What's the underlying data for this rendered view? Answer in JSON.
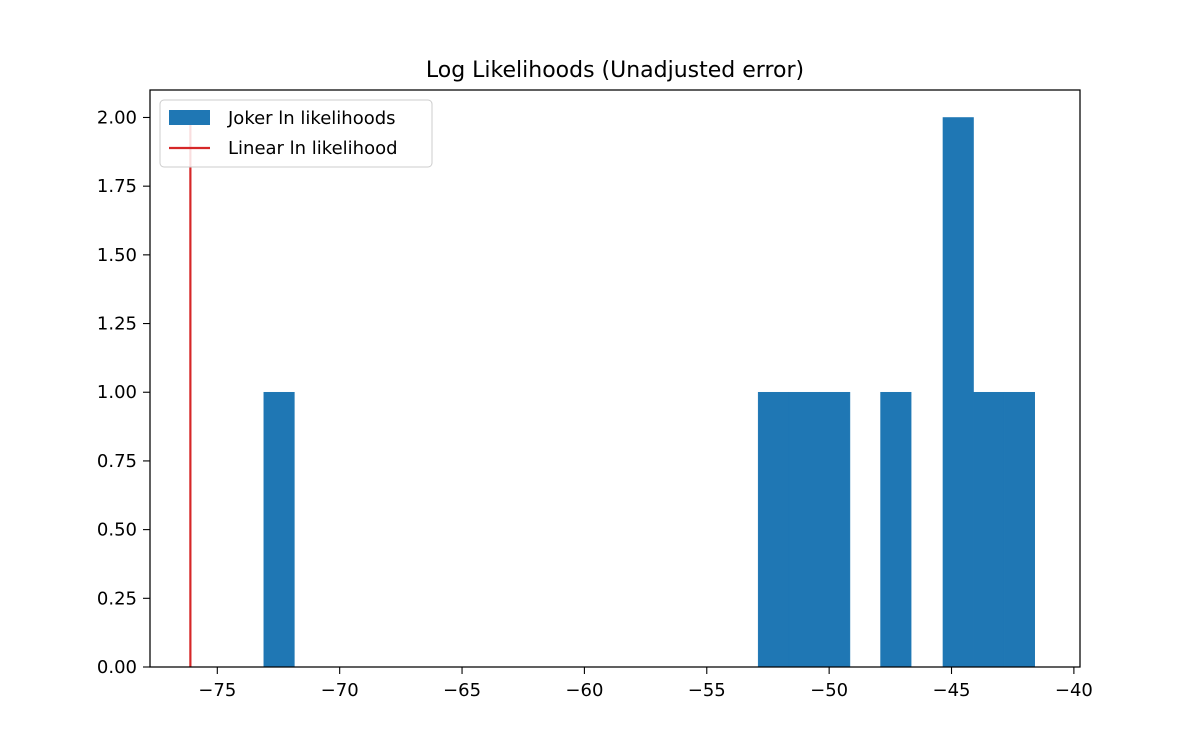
{
  "chart_data": {
    "type": "bar",
    "title": "Log Likelihoods (Unadjusted error)",
    "xlabel": "",
    "ylabel": "",
    "xlim": [
      -77.75,
      -39.75
    ],
    "ylim": [
      0,
      2.1
    ],
    "grid": false,
    "legend_position": "top-left",
    "x_ticks": [
      -75,
      -70,
      -65,
      -60,
      -55,
      -50,
      -45,
      -40
    ],
    "x_tick_labels": [
      "−75",
      "−70",
      "−65",
      "−60",
      "−55",
      "−50",
      "−45",
      "−40"
    ],
    "y_ticks": [
      0,
      0.25,
      0.5,
      0.75,
      1.0,
      1.25,
      1.5,
      1.75,
      2.0
    ],
    "y_tick_labels": [
      "0.00",
      "0.25",
      "0.50",
      "0.75",
      "1.00",
      "1.25",
      "1.50",
      "1.75",
      "2.00"
    ],
    "series": [
      {
        "name": "Joker ln likelihoods",
        "kind": "histogram",
        "color": "#1f77b4",
        "bins": [
          {
            "x0": -73.1,
            "x1": -71.85,
            "count": 1
          },
          {
            "x0": -52.9,
            "x1": -51.65,
            "count": 1
          },
          {
            "x0": -51.65,
            "x1": -50.4,
            "count": 1
          },
          {
            "x0": -50.4,
            "x1": -49.15,
            "count": 1
          },
          {
            "x0": -47.9,
            "x1": -46.65,
            "count": 1
          },
          {
            "x0": -45.35,
            "x1": -44.1,
            "count": 2
          },
          {
            "x0": -44.1,
            "x1": -42.85,
            "count": 1
          },
          {
            "x0": -42.85,
            "x1": -41.6,
            "count": 1
          }
        ]
      },
      {
        "name": "Linear ln likelihood",
        "kind": "vertical_line",
        "color": "#d62728",
        "x": -76.1,
        "ymin": 0,
        "ymax": 2.0
      }
    ]
  }
}
